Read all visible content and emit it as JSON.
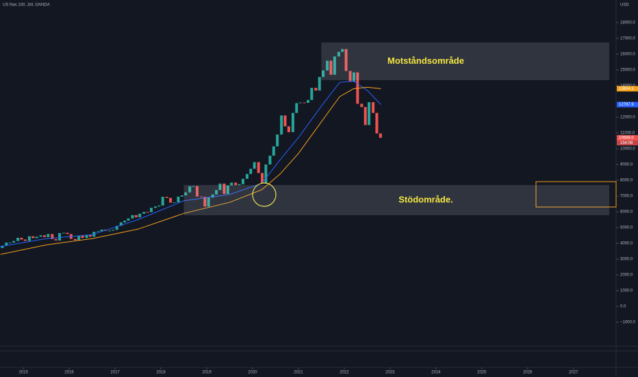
{
  "chart_data": {
    "type": "candlestick",
    "title": "US Nas 100, 1M, OANDA",
    "currency": "USD",
    "up_color": "#26a69a",
    "down_color": "#ef5350",
    "x": [
      2014.54,
      2014.63,
      2014.71,
      2014.79,
      2014.88,
      2014.96,
      2015.04,
      2015.13,
      2015.21,
      2015.29,
      2015.38,
      2015.46,
      2015.54,
      2015.63,
      2015.71,
      2015.79,
      2015.88,
      2015.96,
      2016.04,
      2016.13,
      2016.21,
      2016.29,
      2016.38,
      2016.46,
      2016.54,
      2016.63,
      2016.71,
      2016.79,
      2016.88,
      2016.96,
      2017.04,
      2017.13,
      2017.21,
      2017.29,
      2017.38,
      2017.46,
      2017.54,
      2017.63,
      2017.71,
      2017.79,
      2017.88,
      2017.96,
      2018.04,
      2018.13,
      2018.21,
      2018.29,
      2018.38,
      2018.46,
      2018.54,
      2018.63,
      2018.71,
      2018.79,
      2018.88,
      2018.96,
      2019.04,
      2019.13,
      2019.21,
      2019.29,
      2019.38,
      2019.46,
      2019.54,
      2019.63,
      2019.71,
      2019.79,
      2019.88,
      2019.96,
      2020.04,
      2020.13,
      2020.21,
      2020.29,
      2020.38,
      2020.46,
      2020.54,
      2020.63,
      2020.71,
      2020.79,
      2020.88,
      2020.96,
      2021.04,
      2021.13,
      2021.21,
      2021.29,
      2021.38,
      2021.46,
      2021.54,
      2021.63,
      2021.71,
      2021.79,
      2021.88,
      2021.96,
      2022.04,
      2022.13,
      2022.21,
      2022.29,
      2022.38,
      2022.46,
      2022.54,
      2022.63,
      2022.71,
      2022.79
    ],
    "open": [
      3700,
      3850,
      4050,
      4050,
      4150,
      4350,
      4240,
      4150,
      4450,
      4330,
      4420,
      4510,
      4400,
      4590,
      4270,
      4180,
      4650,
      4670,
      4590,
      4280,
      4200,
      4480,
      4340,
      4520,
      4420,
      4730,
      4770,
      4870,
      4800,
      4810,
      4860,
      5110,
      5330,
      5440,
      5580,
      5790,
      5650,
      5880,
      5990,
      5980,
      6250,
      6340,
      6400,
      6950,
      6880,
      6580,
      6600,
      6960,
      7040,
      7230,
      7620,
      7630,
      6970,
      6950,
      6330,
      6900,
      7100,
      7380,
      7790,
      7130,
      7670,
      7850,
      7690,
      7750,
      8090,
      8400,
      8730,
      9150,
      8460,
      7810,
      9000,
      9560,
      10150,
      10900,
      12110,
      11420,
      11050,
      12270,
      12890,
      12930,
      12910,
      13090,
      13860,
      13690,
      14550,
      14960,
      15580,
      14690,
      15850,
      16140,
      16320,
      14930,
      14240,
      14840,
      12850,
      12640,
      11500,
      12950,
      12270,
      10970
    ],
    "close": [
      3850,
      4050,
      4050,
      4150,
      4350,
      4240,
      4150,
      4450,
      4330,
      4420,
      4510,
      4400,
      4590,
      4270,
      4180,
      4650,
      4670,
      4590,
      4280,
      4200,
      4480,
      4340,
      4520,
      4420,
      4730,
      4770,
      4870,
      4800,
      4810,
      4860,
      5110,
      5330,
      5440,
      5580,
      5790,
      5650,
      5880,
      5990,
      5980,
      6250,
      6340,
      6400,
      6950,
      6880,
      6580,
      6600,
      6960,
      7040,
      7230,
      7620,
      7630,
      6970,
      6950,
      6330,
      6900,
      7100,
      7380,
      7790,
      7130,
      7670,
      7850,
      7690,
      7750,
      8090,
      8400,
      8730,
      9150,
      8460,
      7810,
      9000,
      9560,
      10150,
      10900,
      12110,
      11420,
      11050,
      12270,
      12890,
      12930,
      12910,
      13090,
      13860,
      13690,
      14550,
      14960,
      15580,
      14690,
      15850,
      16140,
      16320,
      14930,
      14240,
      14840,
      12850,
      12640,
      11500,
      12950,
      12270,
      10970,
      10688
    ],
    "lines": [
      {
        "color": "#2962ff",
        "x": [
          2014.5,
          2015.5,
          2016.5,
          2017.5,
          2018.5,
          2019.5,
          2020.2,
          2020.6,
          2021.0,
          2021.5,
          2021.9,
          2022.2,
          2022.5,
          2022.8
        ],
        "values": [
          3800,
          4300,
          4550,
          5500,
          6700,
          7100,
          7800,
          9300,
          10700,
          12700,
          14200,
          14300,
          13700,
          12798
        ]
      },
      {
        "color": "#f7a21b",
        "x": [
          2014.5,
          2015.5,
          2016.5,
          2017.5,
          2018.5,
          2019.5,
          2020.2,
          2020.6,
          2021.0,
          2021.5,
          2021.9,
          2022.2,
          2022.5,
          2022.8
        ],
        "values": [
          3300,
          3900,
          4300,
          4900,
          5900,
          6600,
          7400,
          8400,
          9700,
          11700,
          13300,
          13800,
          13900,
          13804
        ]
      }
    ],
    "zones": [
      {
        "label": "Motståndsområde",
        "x": 2021.5,
        "y": [
          14350,
          16740
        ]
      },
      {
        "label": "Stödområde.",
        "x": 2018.5,
        "y": [
          5780,
          7700
        ]
      }
    ],
    "price_labels": [
      {
        "value": 13804.3,
        "color": "#f7a21b"
      },
      {
        "value": 12797.9,
        "color": "#2962ff"
      },
      {
        "value": 10688,
        "label": "10688.0",
        "color": "#ef5350"
      }
    ],
    "countdown": "154:08",
    "xlim": [
      2014.49,
      2027.93
    ],
    "xticks": [
      2015,
      2016,
      2017,
      2018,
      2019,
      2020,
      2021,
      2022,
      2023,
      2024,
      2025,
      2026,
      2027
    ],
    "ylim": [
      -2520,
      19430
    ],
    "yticks": [
      {
        "value": -1000,
        "label": "−1000.0"
      },
      {
        "value": 0,
        "label": "0.0"
      },
      {
        "value": 1000,
        "label": "1000.0"
      },
      {
        "value": 2000,
        "label": "2000.0"
      },
      {
        "value": 3000,
        "label": "3000.0"
      },
      {
        "value": 4000,
        "label": "4000.0"
      },
      {
        "value": 5000,
        "label": "5000.0"
      },
      {
        "value": 6000,
        "label": "6000.0"
      },
      {
        "value": 7000,
        "label": "7000.0"
      },
      {
        "value": 8000,
        "label": "8000.0"
      },
      {
        "value": 9000,
        "label": "9000.0"
      },
      {
        "value": 10000,
        "label": "10000.0"
      },
      {
        "value": 11000,
        "label": "11000.0"
      },
      {
        "value": 12000,
        "label": "12000.0"
      },
      {
        "value": 14000,
        "label": "14000.0"
      },
      {
        "value": 15000,
        "label": "15000.0"
      },
      {
        "value": 16000,
        "label": "16000.0"
      },
      {
        "value": 17000,
        "label": "17000.0"
      },
      {
        "value": 18000,
        "label": "18000.0"
      }
    ]
  }
}
